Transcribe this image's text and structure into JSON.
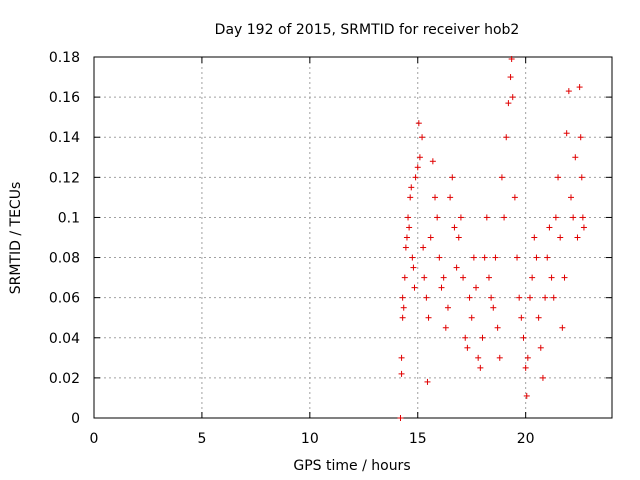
{
  "chart_data": {
    "type": "scatter",
    "title": "Day 192 of 2015, SRMTID for receiver hob2",
    "xlabel": "GPS time / hours",
    "ylabel": "SRMTID / TECUs",
    "xlim": [
      0,
      24
    ],
    "ylim": [
      0,
      0.18
    ],
    "x_ticks": [
      0,
      5,
      10,
      15,
      20
    ],
    "y_ticks": [
      0,
      0.02,
      0.04,
      0.06,
      0.08,
      0.1,
      0.12,
      0.14,
      0.16,
      0.18
    ],
    "x_tick_labels": [
      "0",
      "5",
      "10",
      "15",
      "20"
    ],
    "y_tick_labels": [
      "0",
      "0.02",
      "0.04",
      "0.06",
      "0.08",
      "0.1",
      "0.12",
      "0.14",
      "0.16",
      "0.18"
    ],
    "grid": true,
    "marker": "+",
    "color": "#e00000",
    "series": [
      {
        "points": [
          [
            14.2,
            0.0
          ],
          [
            14.25,
            0.03
          ],
          [
            14.25,
            0.022
          ],
          [
            14.3,
            0.05
          ],
          [
            14.3,
            0.06
          ],
          [
            14.35,
            0.055
          ],
          [
            14.4,
            0.07
          ],
          [
            14.45,
            0.085
          ],
          [
            14.5,
            0.09
          ],
          [
            14.55,
            0.1
          ],
          [
            14.6,
            0.095
          ],
          [
            14.65,
            0.11
          ],
          [
            14.7,
            0.115
          ],
          [
            14.75,
            0.08
          ],
          [
            14.8,
            0.075
          ],
          [
            14.85,
            0.065
          ],
          [
            14.9,
            0.12
          ],
          [
            15.0,
            0.125
          ],
          [
            15.05,
            0.147
          ],
          [
            15.1,
            0.13
          ],
          [
            15.2,
            0.14
          ],
          [
            15.25,
            0.085
          ],
          [
            15.3,
            0.07
          ],
          [
            15.4,
            0.06
          ],
          [
            15.45,
            0.018
          ],
          [
            15.5,
            0.05
          ],
          [
            15.6,
            0.09
          ],
          [
            15.7,
            0.128
          ],
          [
            15.8,
            0.11
          ],
          [
            15.9,
            0.1
          ],
          [
            16.0,
            0.08
          ],
          [
            16.1,
            0.065
          ],
          [
            16.2,
            0.07
          ],
          [
            16.3,
            0.045
          ],
          [
            16.4,
            0.055
          ],
          [
            16.5,
            0.11
          ],
          [
            16.6,
            0.12
          ],
          [
            16.7,
            0.095
          ],
          [
            16.8,
            0.075
          ],
          [
            16.9,
            0.09
          ],
          [
            17.0,
            0.1
          ],
          [
            17.1,
            0.07
          ],
          [
            17.2,
            0.04
          ],
          [
            17.3,
            0.035
          ],
          [
            17.4,
            0.06
          ],
          [
            17.5,
            0.05
          ],
          [
            17.6,
            0.08
          ],
          [
            17.7,
            0.065
          ],
          [
            17.8,
            0.03
          ],
          [
            17.9,
            0.025
          ],
          [
            18.0,
            0.04
          ],
          [
            18.1,
            0.08
          ],
          [
            18.2,
            0.1
          ],
          [
            18.3,
            0.07
          ],
          [
            18.4,
            0.06
          ],
          [
            18.5,
            0.055
          ],
          [
            18.6,
            0.08
          ],
          [
            18.7,
            0.045
          ],
          [
            18.8,
            0.03
          ],
          [
            18.9,
            0.12
          ],
          [
            19.0,
            0.1
          ],
          [
            19.1,
            0.14
          ],
          [
            19.2,
            0.157
          ],
          [
            19.3,
            0.17
          ],
          [
            19.35,
            0.179
          ],
          [
            19.4,
            0.16
          ],
          [
            19.5,
            0.11
          ],
          [
            19.6,
            0.08
          ],
          [
            19.7,
            0.06
          ],
          [
            19.8,
            0.05
          ],
          [
            19.9,
            0.04
          ],
          [
            20.0,
            0.025
          ],
          [
            20.05,
            0.011
          ],
          [
            20.1,
            0.03
          ],
          [
            20.2,
            0.06
          ],
          [
            20.3,
            0.07
          ],
          [
            20.4,
            0.09
          ],
          [
            20.5,
            0.08
          ],
          [
            20.6,
            0.05
          ],
          [
            20.7,
            0.035
          ],
          [
            20.8,
            0.02
          ],
          [
            20.9,
            0.06
          ],
          [
            21.0,
            0.08
          ],
          [
            21.1,
            0.095
          ],
          [
            21.2,
            0.07
          ],
          [
            21.3,
            0.06
          ],
          [
            21.4,
            0.1
          ],
          [
            21.5,
            0.12
          ],
          [
            21.6,
            0.09
          ],
          [
            21.7,
            0.045
          ],
          [
            21.8,
            0.07
          ],
          [
            21.9,
            0.142
          ],
          [
            22.0,
            0.163
          ],
          [
            22.1,
            0.11
          ],
          [
            22.2,
            0.1
          ],
          [
            22.3,
            0.13
          ],
          [
            22.4,
            0.09
          ],
          [
            22.5,
            0.165
          ],
          [
            22.55,
            0.14
          ],
          [
            22.6,
            0.12
          ],
          [
            22.65,
            0.1
          ],
          [
            22.7,
            0.095
          ]
        ]
      }
    ]
  }
}
